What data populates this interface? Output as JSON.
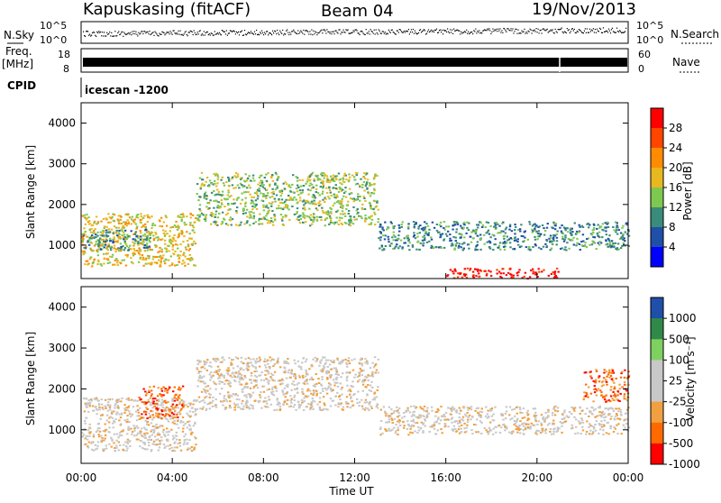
{
  "header": {
    "station": "Kapuskasing (fitACF)",
    "beam": "Beam 04",
    "date": "19/Nov/2013"
  },
  "top_panels": {
    "nsky_label": "N.Sky",
    "nsky_ticks": [
      "10^5",
      "10^0"
    ],
    "nsearch_label": "N.Search",
    "nsearch_ticks": [
      "10^5",
      "10^0"
    ],
    "freq_label": "Freq.",
    "freq_unit": "[MHz]",
    "freq_ticks": [
      "18",
      "8"
    ],
    "nave_label": "Nave",
    "nave_ticks": [
      "60",
      "0"
    ],
    "cpid_label": "CPID",
    "cpid_value": "icescan -1200"
  },
  "chart_data": [
    {
      "type": "heatmap",
      "panel": "power",
      "ylabel": "Slant Range [km]",
      "ylim": [
        180,
        4500
      ],
      "yticks": [
        "4000",
        "3000",
        "2000",
        "1000"
      ],
      "xlim": [
        0,
        24
      ],
      "colorbar_label": "Power [dB]",
      "colorbar_ticks": [
        "28",
        "24",
        "20",
        "16",
        "12",
        "8",
        "4"
      ],
      "colors": [
        "#0000ff",
        "#1f4fa8",
        "#3a8c7a",
        "#7fc850",
        "#e8b820",
        "#ff8c00",
        "#ff4500",
        "#ff0000"
      ],
      "regions": [
        {
          "t": [
            0.0,
            5.0
          ],
          "r": [
            500,
            1800
          ],
          "level": 4
        },
        {
          "t": [
            0.0,
            3.0
          ],
          "r": [
            900,
            1400
          ],
          "level": 2
        },
        {
          "t": [
            5.0,
            13.0
          ],
          "r": [
            1500,
            2800
          ],
          "level": 3
        },
        {
          "t": [
            13.0,
            24.0
          ],
          "r": [
            900,
            1600
          ],
          "level": 2
        },
        {
          "t": [
            16.0,
            21.0
          ],
          "r": [
            200,
            450
          ],
          "level": 7
        }
      ]
    },
    {
      "type": "heatmap",
      "panel": "velocity",
      "ylabel": "Slant Range [km]",
      "ylim": [
        180,
        4500
      ],
      "yticks": [
        "4000",
        "3000",
        "2000",
        "1000"
      ],
      "xlim": [
        0,
        24
      ],
      "xlabel": "Time UT",
      "xticks": [
        "00:00",
        "04:00",
        "08:00",
        "12:00",
        "16:00",
        "20:00",
        "00:00"
      ],
      "colorbar_label": "Velocity [m s⁻¹]",
      "colorbar_ticks": [
        "1000",
        "500",
        "100",
        "25",
        "-25",
        "-100",
        "-500",
        "-1000"
      ],
      "colors": [
        "#ff0000",
        "#ff6a00",
        "#f0a040",
        "#c8c8c8",
        "#c8c8c8",
        "#7ed060",
        "#2f8a4a",
        "#1f4fa8"
      ],
      "regions": [
        {
          "t": [
            0.0,
            5.0
          ],
          "r": [
            500,
            1800
          ],
          "level": 3
        },
        {
          "t": [
            2.5,
            4.5
          ],
          "r": [
            1300,
            2100
          ],
          "level": 1
        },
        {
          "t": [
            5.0,
            13.0
          ],
          "r": [
            1500,
            2800
          ],
          "level": 3
        },
        {
          "t": [
            13.0,
            24.0
          ],
          "r": [
            900,
            1600
          ],
          "level": 3
        },
        {
          "t": [
            22.0,
            24.0
          ],
          "r": [
            1700,
            2500
          ],
          "level": 1
        }
      ]
    }
  ]
}
